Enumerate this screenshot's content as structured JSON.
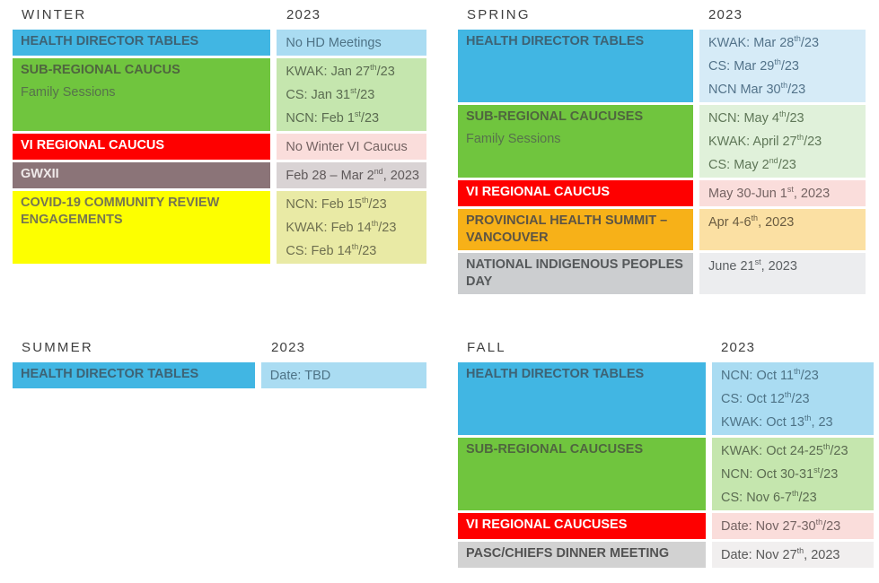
{
  "palette": {
    "header_fg": "#3f3f3f",
    "styles": {
      "blue": {
        "label_bg": "#41b6e3",
        "label_fg": "#3d6375",
        "value_bg": "#aadcf2",
        "value_fg": "#4e7386"
      },
      "blue_light": {
        "label_bg": "#41b6e3",
        "label_fg": "#3d6375",
        "value_bg": "#d6ebf7",
        "value_fg": "#53738a"
      },
      "green": {
        "label_bg": "#70c53e",
        "label_fg": "#4f663f",
        "value_bg": "#c5e6ae",
        "value_fg": "#5b6c51",
        "sublabel_fg": "#57724c"
      },
      "green_light": {
        "label_bg": "#70c53e",
        "label_fg": "#4f663f",
        "value_bg": "#e0f1da",
        "value_fg": "#5f7758",
        "sublabel_fg": "#57724c"
      },
      "red": {
        "label_bg": "#fe0000",
        "label_fg": "#ffffff",
        "value_bg": "#fadddb",
        "value_fg": "#746362"
      },
      "mauve": {
        "label_bg": "#8b7478",
        "label_fg": "#efe9e9",
        "value_bg": "#d9d3d4",
        "value_fg": "#5f595a"
      },
      "yellow": {
        "label_bg": "#fdff00",
        "label_fg": "#767650",
        "value_bg": "#e9eaa5",
        "value_fg": "#6e6f4f"
      },
      "orange": {
        "label_bg": "#f7b118",
        "label_fg": "#5c5444",
        "value_bg": "#fbe0a3",
        "value_fg": "#6a5c41"
      },
      "grey": {
        "label_bg": "#ccced0",
        "label_fg": "#55585a",
        "value_bg": "#ecedef",
        "value_fg": "#5c6063"
      },
      "grey_light": {
        "label_bg": "#d2d2d2",
        "label_fg": "#525252",
        "value_bg": "#f1efef",
        "value_fg": "#585858"
      }
    }
  },
  "sections": [
    {
      "season": "WINTER",
      "year": "2023",
      "rows": [
        {
          "label": "HEALTH DIRECTOR TABLES",
          "style": "blue",
          "lines": [
            "No HD Meetings"
          ]
        },
        {
          "label": "SUB-REGIONAL CAUCUS",
          "sublabel": "Family Sessions",
          "style": "green",
          "lines": [
            "KWAK: Jan 27^{th}/23",
            "CS: Jan 31^{st}/23",
            "NCN: Feb 1^{st}/23"
          ]
        },
        {
          "label": "VI REGIONAL CAUCUS",
          "style": "red",
          "lines": [
            "No Winter VI Caucus"
          ]
        },
        {
          "label": "GWXII",
          "style": "mauve",
          "lines": [
            "Feb 28 – Mar 2^{nd}, 2023"
          ]
        },
        {
          "label": "COVID-19 COMMUNITY REVIEW ENGAGEMENTS",
          "style": "yellow",
          "lines": [
            "NCN: Feb 15^{th}/23",
            "KWAK: Feb 14^{th}/23",
            "CS: Feb 14^{th}/23"
          ]
        }
      ]
    },
    {
      "season": "SPRING",
      "year": "2023",
      "rows": [
        {
          "label": "HEALTH DIRECTOR TABLES",
          "style": "blue_light",
          "lines": [
            "KWAK: Mar 28^{th}/23",
            "CS: Mar 29^{th}/23",
            "NCN Mar 30^{th}/23"
          ]
        },
        {
          "label": "SUB-REGIONAL CAUCUSES",
          "sublabel": "Family Sessions",
          "style": "green_light",
          "lines": [
            "NCN: May 4^{th}/23",
            "KWAK: April 27^{th}/23",
            "CS: May 2^{nd}/23"
          ]
        },
        {
          "label": "VI REGIONAL CAUCUS",
          "style": "red",
          "lines": [
            "May 30-Jun 1^{st}, 2023"
          ]
        },
        {
          "label": "PROVINCIAL HEALTH SUMMIT – VANCOUVER",
          "style": "orange",
          "lines": [
            "Apr 4-6^{th}, 2023"
          ]
        },
        {
          "label": "NATIONAL INDIGENOUS PEOPLES DAY",
          "style": "grey",
          "lines": [
            "June 21^{st}, 2023"
          ]
        }
      ]
    },
    {
      "season": "SUMMER",
      "year": "2023",
      "rows": [
        {
          "label": "HEALTH DIRECTOR TABLES",
          "style": "blue",
          "lines": [
            "Date: TBD"
          ]
        }
      ]
    },
    {
      "season": "FALL",
      "year": "2023",
      "rows": [
        {
          "label": "HEALTH DIRECTOR TABLES",
          "style": "blue",
          "lines": [
            "NCN: Oct 11^{th}/23",
            "CS: Oct 12^{th}/23",
            "KWAK: Oct 13^{th}, 23"
          ]
        },
        {
          "label": "SUB-REGIONAL CAUCUSES",
          "style": "green",
          "lines": [
            "KWAK: Oct 24-25^{th}/23",
            "NCN: Oct 30-31^{st}/23",
            "CS: Nov 6-7^{th}/23"
          ]
        },
        {
          "label": "VI REGIONAL CAUCUSES",
          "style": "red",
          "lines": [
            "Date: Nov 27-30^{th}/23"
          ]
        },
        {
          "label": "PASC/CHIEFS DINNER MEETING",
          "style": "grey_light",
          "lines": [
            "Date: Nov 27^{th}, 2023"
          ]
        }
      ]
    }
  ]
}
